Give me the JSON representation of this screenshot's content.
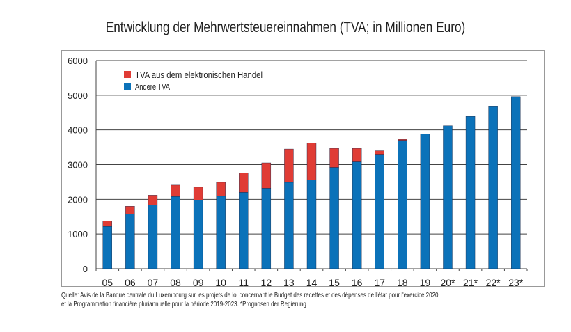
{
  "chart_data": {
    "type": "bar",
    "stacked": true,
    "title": "Entwicklung der Mehrwertsteuereinnahmen (TVA; in Millionen Euro)",
    "xlabel": "",
    "ylabel": "",
    "ylim": [
      0,
      6000
    ],
    "yticks": [
      0,
      1000,
      2000,
      3000,
      4000,
      5000,
      6000
    ],
    "grid": true,
    "legend_position": "top-left",
    "categories": [
      "05",
      "06",
      "07",
      "08",
      "09",
      "10",
      "11",
      "12",
      "13",
      "14",
      "15",
      "16",
      "17",
      "18",
      "19",
      "20*",
      "21*",
      "22*",
      "23*"
    ],
    "series": [
      {
        "name": "Andere TVA",
        "color": "#0b72b9",
        "values": [
          1220,
          1580,
          1840,
          2080,
          1980,
          2090,
          2200,
          2320,
          2490,
          2560,
          2920,
          3080,
          3300,
          3700,
          3880,
          4120,
          4390,
          4670,
          4960
        ]
      },
      {
        "name": "TVA aus dem elektronischen Handel",
        "color": "#e03c35",
        "values": [
          160,
          220,
          280,
          330,
          370,
          400,
          560,
          730,
          960,
          1060,
          550,
          390,
          100,
          30,
          0,
          0,
          0,
          0,
          0
        ]
      }
    ]
  },
  "source": {
    "line1": "Quelle: Avis de la Banque centrale du Luxembourg sur les projets de loi concernant le Budget des recettes et des dépenses de l'état pour l'exercice 2020",
    "line2": "et la Programmation financière pluriannuelle pour la période 2019-2023. *Prognosen der Regierung"
  }
}
